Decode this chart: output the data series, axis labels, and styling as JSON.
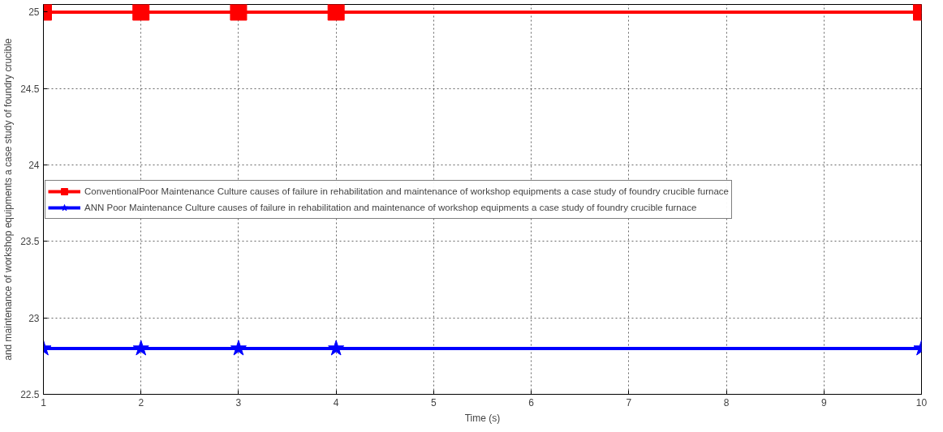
{
  "chart_data": {
    "type": "line",
    "xlabel": "Time (s)",
    "ylabel": "and maintenance of workshop equipments a case study of foundry crucible",
    "x": [
      1,
      2,
      3,
      4,
      10
    ],
    "series": [
      {
        "name": "ConventionalPoor Maintenance Culture causes of failure in rehabilitation and maintenance of workshop equipments a case study of foundry crucible furnace",
        "color": "#ff0000",
        "values": [
          25,
          25,
          25,
          25,
          25
        ],
        "marker": "square"
      },
      {
        "name": "ANN Poor Maintenance Culture causes of failure in rehabilitation and maintenance of workshop equipments a case study of foundry crucible furnace",
        "color": "#0000ff",
        "values": [
          22.8,
          22.8,
          22.8,
          22.8,
          22.8
        ],
        "marker": "star"
      }
    ],
    "xlim": [
      1,
      10
    ],
    "xticks": [
      1,
      2,
      3,
      4,
      5,
      6,
      7,
      8,
      9,
      10
    ],
    "ylim": [
      22.5,
      25.05
    ],
    "yticks": [
      22.5,
      23,
      23.5,
      24,
      24.5,
      25
    ],
    "grid": true,
    "legend": "left",
    "line_style": "solid"
  }
}
